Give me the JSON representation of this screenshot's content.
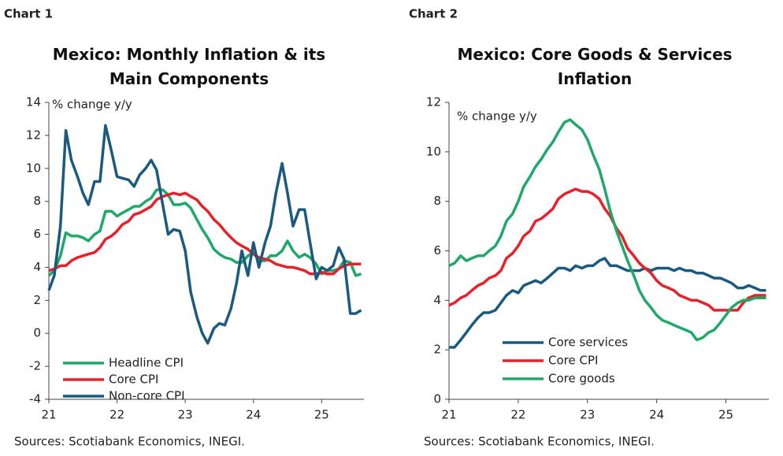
{
  "chart_data": [
    {
      "type": "line",
      "label": "Chart 1",
      "title": "Mexico: Monthly Inflation & its Main Components",
      "y_label": "% change y/y",
      "source": "Sources: Scotiabank Economics, INEGI.",
      "x": [
        21,
        21.08,
        21.17,
        21.25,
        21.33,
        21.42,
        21.5,
        21.58,
        21.67,
        21.75,
        21.83,
        21.92,
        22,
        22.08,
        22.17,
        22.25,
        22.33,
        22.42,
        22.5,
        22.58,
        22.67,
        22.75,
        22.83,
        22.92,
        23,
        23.08,
        23.17,
        23.25,
        23.33,
        23.42,
        23.5,
        23.58,
        23.67,
        23.75,
        23.83,
        23.92,
        24,
        24.08,
        24.17,
        24.25,
        24.33,
        24.42,
        24.5,
        24.58,
        24.67,
        24.75,
        24.83,
        24.92,
        25,
        25.08,
        25.17,
        25.25,
        25.33,
        25.42,
        25.5,
        25.58
      ],
      "xlim": [
        21,
        25.62
      ],
      "xticks": [
        21,
        22,
        23,
        24,
        25
      ],
      "ylim": [
        -4,
        14
      ],
      "yticks": [
        -4,
        -2,
        0,
        2,
        4,
        6,
        8,
        10,
        12,
        14
      ],
      "grid": false,
      "legend": "lower left",
      "series": [
        {
          "name": "Headline CPI",
          "color": "#1fa86a",
          "values": [
            3.5,
            3.8,
            4.7,
            6.1,
            5.9,
            5.9,
            5.8,
            5.6,
            6.0,
            6.2,
            7.4,
            7.4,
            7.1,
            7.3,
            7.5,
            7.7,
            7.7,
            8.0,
            8.2,
            8.7,
            8.7,
            8.4,
            7.8,
            7.8,
            7.9,
            7.6,
            6.9,
            6.3,
            5.8,
            5.1,
            4.8,
            4.6,
            4.5,
            4.3,
            4.3,
            4.7,
            4.9,
            4.4,
            4.4,
            4.7,
            4.7,
            5.0,
            5.6,
            5.0,
            4.6,
            4.8,
            4.6,
            4.2,
            3.6,
            3.8,
            3.8,
            3.9,
            4.4,
            4.3,
            3.5,
            3.6
          ]
        },
        {
          "name": "Core CPI",
          "color": "#e8202a",
          "values": [
            3.8,
            3.9,
            4.1,
            4.1,
            4.4,
            4.6,
            4.7,
            4.8,
            4.9,
            5.2,
            5.7,
            5.9,
            6.2,
            6.6,
            6.8,
            7.2,
            7.3,
            7.5,
            7.7,
            8.1,
            8.3,
            8.4,
            8.5,
            8.4,
            8.5,
            8.3,
            8.1,
            7.7,
            7.4,
            6.9,
            6.6,
            6.2,
            5.8,
            5.5,
            5.3,
            5.1,
            4.8,
            4.6,
            4.5,
            4.4,
            4.2,
            4.1,
            4.0,
            4.0,
            3.9,
            3.8,
            3.6,
            3.6,
            3.7,
            3.6,
            3.6,
            3.9,
            4.1,
            4.2,
            4.2,
            4.2
          ]
        },
        {
          "name": "Non-core CPI",
          "color": "#1b5a80",
          "values": [
            2.6,
            3.5,
            6.5,
            12.3,
            10.5,
            9.5,
            8.5,
            7.8,
            9.2,
            9.2,
            12.6,
            11.0,
            9.5,
            9.4,
            9.3,
            8.9,
            9.6,
            10.0,
            10.5,
            9.9,
            7.8,
            6.0,
            6.3,
            6.2,
            5.0,
            2.5,
            1.0,
            0.0,
            -0.6,
            0.3,
            0.6,
            0.5,
            1.5,
            3.0,
            5.0,
            3.5,
            5.5,
            4.0,
            5.5,
            6.5,
            8.5,
            10.3,
            8.5,
            6.5,
            7.5,
            7.5,
            5.5,
            3.3,
            4.0,
            3.8,
            4.1,
            5.2,
            4.5,
            1.2,
            1.2,
            1.4
          ]
        }
      ]
    },
    {
      "type": "line",
      "label": "Chart 2",
      "title": "Mexico: Core Goods & Services Inflation",
      "y_label": "% change y/y",
      "source": "Sources: Scotiabank Economics, INEGI.",
      "x": [
        21,
        21.08,
        21.17,
        21.25,
        21.33,
        21.42,
        21.5,
        21.58,
        21.67,
        21.75,
        21.83,
        21.92,
        22,
        22.08,
        22.17,
        22.25,
        22.33,
        22.42,
        22.5,
        22.58,
        22.67,
        22.75,
        22.83,
        22.92,
        23,
        23.08,
        23.17,
        23.25,
        23.33,
        23.42,
        23.5,
        23.58,
        23.67,
        23.75,
        23.83,
        23.92,
        24,
        24.08,
        24.17,
        24.25,
        24.33,
        24.42,
        24.5,
        24.58,
        24.67,
        24.75,
        24.83,
        24.92,
        25,
        25.08,
        25.17,
        25.25,
        25.33,
        25.42,
        25.5,
        25.58
      ],
      "xlim": [
        21,
        25.62
      ],
      "xticks": [
        21,
        22,
        23,
        24,
        25
      ],
      "ylim": [
        0,
        12
      ],
      "yticks": [
        0,
        2,
        4,
        6,
        8,
        10,
        12
      ],
      "grid": false,
      "legend": "lower left",
      "series": [
        {
          "name": "Core services",
          "color": "#1b5a80",
          "values": [
            2.1,
            2.1,
            2.4,
            2.7,
            3.0,
            3.3,
            3.5,
            3.5,
            3.6,
            3.9,
            4.2,
            4.4,
            4.3,
            4.6,
            4.7,
            4.8,
            4.7,
            4.9,
            5.1,
            5.3,
            5.3,
            5.2,
            5.4,
            5.3,
            5.4,
            5.4,
            5.6,
            5.7,
            5.4,
            5.4,
            5.3,
            5.2,
            5.2,
            5.2,
            5.3,
            5.2,
            5.3,
            5.3,
            5.3,
            5.2,
            5.3,
            5.2,
            5.2,
            5.1,
            5.1,
            5.0,
            4.9,
            4.9,
            4.8,
            4.7,
            4.5,
            4.5,
            4.6,
            4.5,
            4.4,
            4.4
          ]
        },
        {
          "name": "Core CPI",
          "color": "#e8202a",
          "values": [
            3.8,
            3.9,
            4.1,
            4.2,
            4.4,
            4.6,
            4.7,
            4.9,
            5.0,
            5.2,
            5.7,
            5.9,
            6.2,
            6.6,
            6.8,
            7.2,
            7.3,
            7.5,
            7.7,
            8.1,
            8.3,
            8.4,
            8.5,
            8.4,
            8.4,
            8.3,
            8.1,
            7.7,
            7.4,
            6.9,
            6.6,
            6.1,
            5.8,
            5.5,
            5.3,
            5.1,
            4.8,
            4.6,
            4.5,
            4.4,
            4.2,
            4.1,
            4.0,
            4.0,
            3.9,
            3.8,
            3.6,
            3.6,
            3.6,
            3.6,
            3.6,
            3.9,
            4.1,
            4.2,
            4.2,
            4.2
          ]
        },
        {
          "name": "Core goods",
          "color": "#1fa86a",
          "values": [
            5.4,
            5.5,
            5.8,
            5.6,
            5.7,
            5.8,
            5.8,
            6.0,
            6.2,
            6.6,
            7.2,
            7.5,
            8.0,
            8.6,
            9.0,
            9.4,
            9.7,
            10.1,
            10.4,
            10.8,
            11.2,
            11.3,
            11.1,
            10.9,
            10.5,
            9.9,
            9.3,
            8.5,
            7.6,
            6.8,
            6.2,
            5.6,
            5.0,
            4.4,
            4.0,
            3.7,
            3.4,
            3.2,
            3.1,
            3.0,
            2.9,
            2.8,
            2.7,
            2.4,
            2.5,
            2.7,
            2.8,
            3.1,
            3.4,
            3.7,
            3.9,
            4.0,
            4.0,
            4.1,
            4.1,
            4.1
          ]
        }
      ]
    }
  ]
}
